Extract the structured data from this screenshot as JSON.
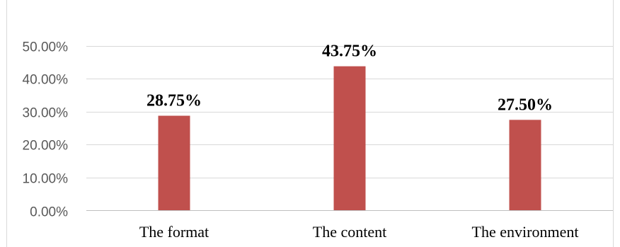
{
  "chart_data": {
    "type": "bar",
    "title": "",
    "xlabel": "",
    "ylabel": "",
    "categories": [
      "The format",
      "The content",
      "The environment"
    ],
    "values": [
      28.75,
      43.75,
      27.5
    ],
    "data_labels": [
      "28.75%",
      "43.75%",
      "27.50%"
    ],
    "ylim": [
      0,
      50
    ],
    "y_ticks": [
      0,
      10,
      20,
      30,
      40,
      50
    ],
    "y_tick_labels": [
      "0.00%",
      "10.00%",
      "20.00%",
      "30.00%",
      "40.00%",
      "50.00%"
    ],
    "grid": true,
    "legend": "none",
    "bar_color": "#C0504D"
  }
}
